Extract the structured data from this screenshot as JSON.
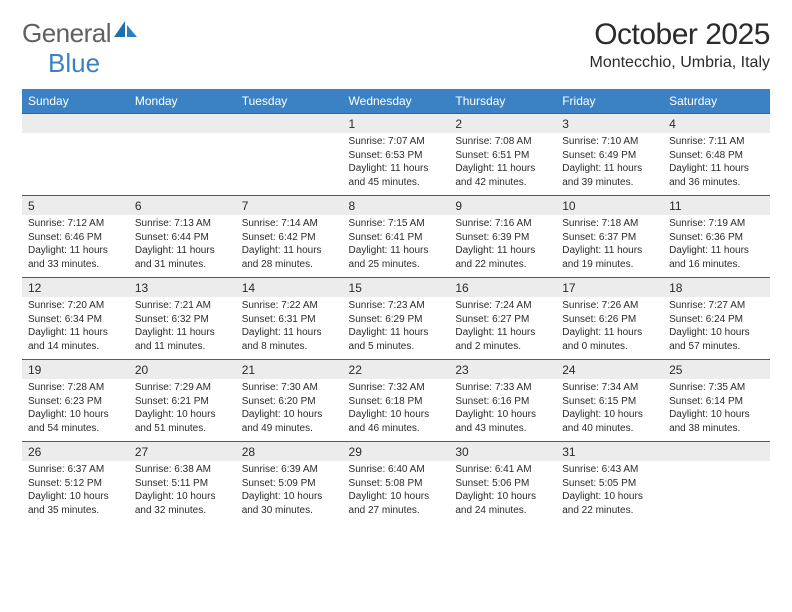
{
  "logo": {
    "text1": "General",
    "text2": "Blue"
  },
  "title": "October 2025",
  "location": "Montecchio, Umbria, Italy",
  "colors": {
    "header_bg": "#3b82c4",
    "header_text": "#ffffff",
    "date_row_bg": "#ececec",
    "border": "#5a5a5a",
    "text": "#2b2b2b",
    "logo_gray": "#616161",
    "logo_blue": "#3b82c4",
    "page_bg": "#ffffff"
  },
  "day_headers": [
    "Sunday",
    "Monday",
    "Tuesday",
    "Wednesday",
    "Thursday",
    "Friday",
    "Saturday"
  ],
  "weeks": [
    [
      null,
      null,
      null,
      {
        "n": "1",
        "sr": "7:07 AM",
        "ss": "6:53 PM",
        "dl": "11 hours and 45 minutes."
      },
      {
        "n": "2",
        "sr": "7:08 AM",
        "ss": "6:51 PM",
        "dl": "11 hours and 42 minutes."
      },
      {
        "n": "3",
        "sr": "7:10 AM",
        "ss": "6:49 PM",
        "dl": "11 hours and 39 minutes."
      },
      {
        "n": "4",
        "sr": "7:11 AM",
        "ss": "6:48 PM",
        "dl": "11 hours and 36 minutes."
      }
    ],
    [
      {
        "n": "5",
        "sr": "7:12 AM",
        "ss": "6:46 PM",
        "dl": "11 hours and 33 minutes."
      },
      {
        "n": "6",
        "sr": "7:13 AM",
        "ss": "6:44 PM",
        "dl": "11 hours and 31 minutes."
      },
      {
        "n": "7",
        "sr": "7:14 AM",
        "ss": "6:42 PM",
        "dl": "11 hours and 28 minutes."
      },
      {
        "n": "8",
        "sr": "7:15 AM",
        "ss": "6:41 PM",
        "dl": "11 hours and 25 minutes."
      },
      {
        "n": "9",
        "sr": "7:16 AM",
        "ss": "6:39 PM",
        "dl": "11 hours and 22 minutes."
      },
      {
        "n": "10",
        "sr": "7:18 AM",
        "ss": "6:37 PM",
        "dl": "11 hours and 19 minutes."
      },
      {
        "n": "11",
        "sr": "7:19 AM",
        "ss": "6:36 PM",
        "dl": "11 hours and 16 minutes."
      }
    ],
    [
      {
        "n": "12",
        "sr": "7:20 AM",
        "ss": "6:34 PM",
        "dl": "11 hours and 14 minutes."
      },
      {
        "n": "13",
        "sr": "7:21 AM",
        "ss": "6:32 PM",
        "dl": "11 hours and 11 minutes."
      },
      {
        "n": "14",
        "sr": "7:22 AM",
        "ss": "6:31 PM",
        "dl": "11 hours and 8 minutes."
      },
      {
        "n": "15",
        "sr": "7:23 AM",
        "ss": "6:29 PM",
        "dl": "11 hours and 5 minutes."
      },
      {
        "n": "16",
        "sr": "7:24 AM",
        "ss": "6:27 PM",
        "dl": "11 hours and 2 minutes."
      },
      {
        "n": "17",
        "sr": "7:26 AM",
        "ss": "6:26 PM",
        "dl": "11 hours and 0 minutes."
      },
      {
        "n": "18",
        "sr": "7:27 AM",
        "ss": "6:24 PM",
        "dl": "10 hours and 57 minutes."
      }
    ],
    [
      {
        "n": "19",
        "sr": "7:28 AM",
        "ss": "6:23 PM",
        "dl": "10 hours and 54 minutes."
      },
      {
        "n": "20",
        "sr": "7:29 AM",
        "ss": "6:21 PM",
        "dl": "10 hours and 51 minutes."
      },
      {
        "n": "21",
        "sr": "7:30 AM",
        "ss": "6:20 PM",
        "dl": "10 hours and 49 minutes."
      },
      {
        "n": "22",
        "sr": "7:32 AM",
        "ss": "6:18 PM",
        "dl": "10 hours and 46 minutes."
      },
      {
        "n": "23",
        "sr": "7:33 AM",
        "ss": "6:16 PM",
        "dl": "10 hours and 43 minutes."
      },
      {
        "n": "24",
        "sr": "7:34 AM",
        "ss": "6:15 PM",
        "dl": "10 hours and 40 minutes."
      },
      {
        "n": "25",
        "sr": "7:35 AM",
        "ss": "6:14 PM",
        "dl": "10 hours and 38 minutes."
      }
    ],
    [
      {
        "n": "26",
        "sr": "6:37 AM",
        "ss": "5:12 PM",
        "dl": "10 hours and 35 minutes."
      },
      {
        "n": "27",
        "sr": "6:38 AM",
        "ss": "5:11 PM",
        "dl": "10 hours and 32 minutes."
      },
      {
        "n": "28",
        "sr": "6:39 AM",
        "ss": "5:09 PM",
        "dl": "10 hours and 30 minutes."
      },
      {
        "n": "29",
        "sr": "6:40 AM",
        "ss": "5:08 PM",
        "dl": "10 hours and 27 minutes."
      },
      {
        "n": "30",
        "sr": "6:41 AM",
        "ss": "5:06 PM",
        "dl": "10 hours and 24 minutes."
      },
      {
        "n": "31",
        "sr": "6:43 AM",
        "ss": "5:05 PM",
        "dl": "10 hours and 22 minutes."
      },
      null
    ]
  ],
  "labels": {
    "sunrise": "Sunrise:",
    "sunset": "Sunset:",
    "daylight": "Daylight:"
  }
}
